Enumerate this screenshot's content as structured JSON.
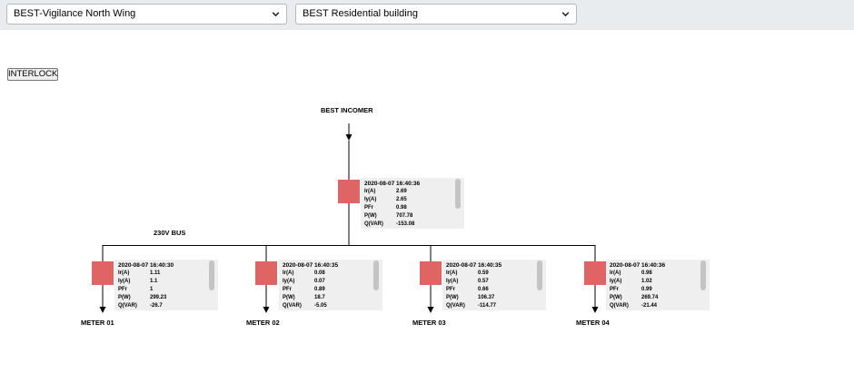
{
  "selectors": {
    "site": "BEST-Vigilance North Wing",
    "building": "BEST Residential building"
  },
  "toolbar": {
    "interlock_label": "INTERLOCK"
  },
  "diagram": {
    "incomer_label": "BEST INCOMER",
    "bus_label": "230V BUS",
    "breaker_color": "#e06464",
    "incomer": {
      "timestamp": "2020-08-07 16:40:36",
      "rows": [
        {
          "k": "Ir(A)",
          "v": "2.69"
        },
        {
          "k": "Iy(A)",
          "v": "2.65"
        },
        {
          "k": "PFr",
          "v": "0.98"
        },
        {
          "k": "P(W)",
          "v": "707.78"
        },
        {
          "k": "Q(VAR)",
          "v": "-153.08"
        }
      ]
    },
    "meters": [
      {
        "label": "METER 01",
        "timestamp": "2020-08-07 16:40:30",
        "rows": [
          {
            "k": "Ir(A)",
            "v": "1.11"
          },
          {
            "k": "Iy(A)",
            "v": "1.1"
          },
          {
            "k": "PFr",
            "v": "1"
          },
          {
            "k": "P(W)",
            "v": "299.23"
          },
          {
            "k": "Q(VAR)",
            "v": "-26.7"
          }
        ]
      },
      {
        "label": "METER 02",
        "timestamp": "2020-08-07 16:40:35",
        "rows": [
          {
            "k": "Ir(A)",
            "v": "0.08"
          },
          {
            "k": "Iy(A)",
            "v": "0.07"
          },
          {
            "k": "PFr",
            "v": "0.89"
          },
          {
            "k": "P(W)",
            "v": "18.7"
          },
          {
            "k": "Q(VAR)",
            "v": "-5.05"
          }
        ]
      },
      {
        "label": "METER 03",
        "timestamp": "2020-08-07 16:40:35",
        "rows": [
          {
            "k": "Ir(A)",
            "v": "0.59"
          },
          {
            "k": "Iy(A)",
            "v": "0.57"
          },
          {
            "k": "PFr",
            "v": "0.66"
          },
          {
            "k": "P(W)",
            "v": "106.37"
          },
          {
            "k": "Q(VAR)",
            "v": "-114.77"
          }
        ]
      },
      {
        "label": "METER 04",
        "timestamp": "2020-08-07 16:40:36",
        "rows": [
          {
            "k": "Ir(A)",
            "v": "0.98"
          },
          {
            "k": "Iy(A)",
            "v": "1.02"
          },
          {
            "k": "PFr",
            "v": "0.99"
          },
          {
            "k": "P(W)",
            "v": "269.74"
          },
          {
            "k": "Q(VAR)",
            "v": "-21.44"
          }
        ]
      }
    ]
  }
}
